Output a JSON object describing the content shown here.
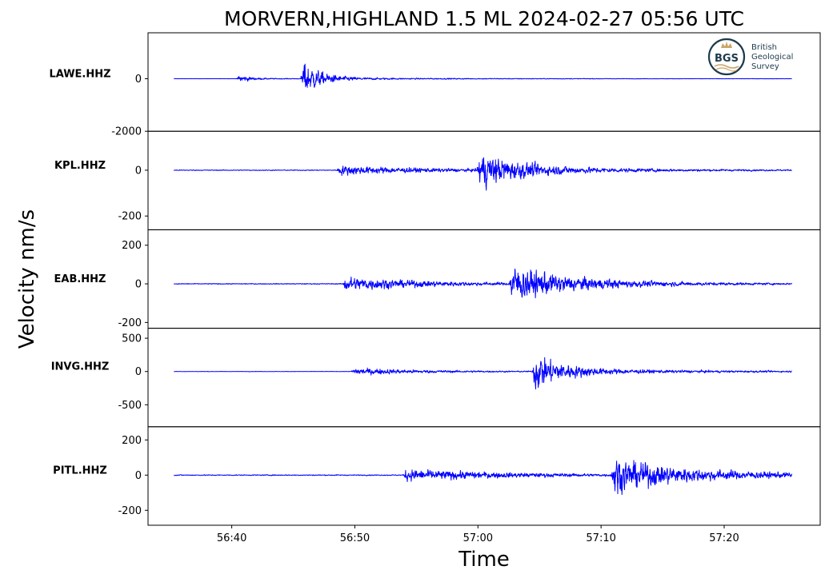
{
  "chart_data": {
    "type": "line",
    "title": "MORVERN,HIGHLAND 1.5 ML   2024-02-27 05:56 UTC",
    "xlabel": "Time",
    "ylabel": "Velocity nm/s",
    "time_start_s": 35.3,
    "time_end_s": 85.5,
    "xlim": [
      33.2,
      87.8
    ],
    "x_ticks": [
      {
        "value": 40,
        "label": "56:40"
      },
      {
        "value": 50,
        "label": "56:50"
      },
      {
        "value": 60,
        "label": "57:00"
      },
      {
        "value": 70,
        "label": "57:10"
      },
      {
        "value": 80,
        "label": "57:20"
      }
    ],
    "series": [
      {
        "name": "LAWE.HHZ",
        "ylim": [
          -2000,
          1750
        ],
        "y_ticks": [
          {
            "value": 0,
            "label": "0"
          },
          {
            "value": -2000,
            "label": "-2000"
          }
        ],
        "noise": 5,
        "arrivals": [
          {
            "t": 40.4,
            "amp": 450,
            "decay": 0.9,
            "coda": 0.08
          },
          {
            "t": 45.6,
            "amp": 1800,
            "decay": 1.4,
            "coda": 0.05
          }
        ]
      },
      {
        "name": "KPL.HHZ",
        "ylim": [
          -260,
          170
        ],
        "y_ticks": [
          {
            "value": 0,
            "label": "0"
          },
          {
            "value": -200,
            "label": "-200"
          }
        ],
        "noise": 4,
        "arrivals": [
          {
            "t": 48.5,
            "amp": 50,
            "decay": 7,
            "coda": 0.25
          },
          {
            "t": 59.9,
            "amp": 190,
            "decay": 3.5,
            "coda": 0.15
          }
        ]
      },
      {
        "name": "EAB.HHZ",
        "ylim": [
          -230,
          280
        ],
        "y_ticks": [
          {
            "value": 200,
            "label": "200"
          },
          {
            "value": 0,
            "label": "0"
          },
          {
            "value": -200,
            "label": "-200"
          }
        ],
        "noise": 5,
        "arrivals": [
          {
            "t": 49.0,
            "amp": 90,
            "decay": 6,
            "coda": 0.2
          },
          {
            "t": 62.5,
            "amp": 230,
            "decay": 4.5,
            "coda": 0.15
          }
        ]
      },
      {
        "name": "INVG.HHZ",
        "ylim": [
          -830,
          650
        ],
        "y_ticks": [
          {
            "value": 500,
            "label": "500"
          },
          {
            "value": 0,
            "label": "0"
          },
          {
            "value": -500,
            "label": "-500"
          }
        ],
        "noise": 6,
        "arrivals": [
          {
            "t": 49.7,
            "amp": 130,
            "decay": 5,
            "coda": 0.25
          },
          {
            "t": 64.4,
            "amp": 720,
            "decay": 2.3,
            "coda": 0.12
          }
        ]
      },
      {
        "name": "PITL.HHZ",
        "ylim": [
          -285,
          275
        ],
        "y_ticks": [
          {
            "value": 200,
            "label": "200"
          },
          {
            "value": 0,
            "label": "0"
          },
          {
            "value": -200,
            "label": "-200"
          }
        ],
        "noise": 6,
        "arrivals": [
          {
            "t": 53.9,
            "amp": 80,
            "decay": 8,
            "coda": 0.3
          },
          {
            "t": 70.8,
            "amp": 250,
            "decay": 4.5,
            "coda": 0.25
          }
        ]
      }
    ],
    "grid": false,
    "color": "#0000ff"
  },
  "logo": {
    "initials": "BGS",
    "lines": [
      "British",
      "Geological",
      "Survey"
    ],
    "color": "#1d3a4d",
    "accent": "#c9a56a"
  }
}
